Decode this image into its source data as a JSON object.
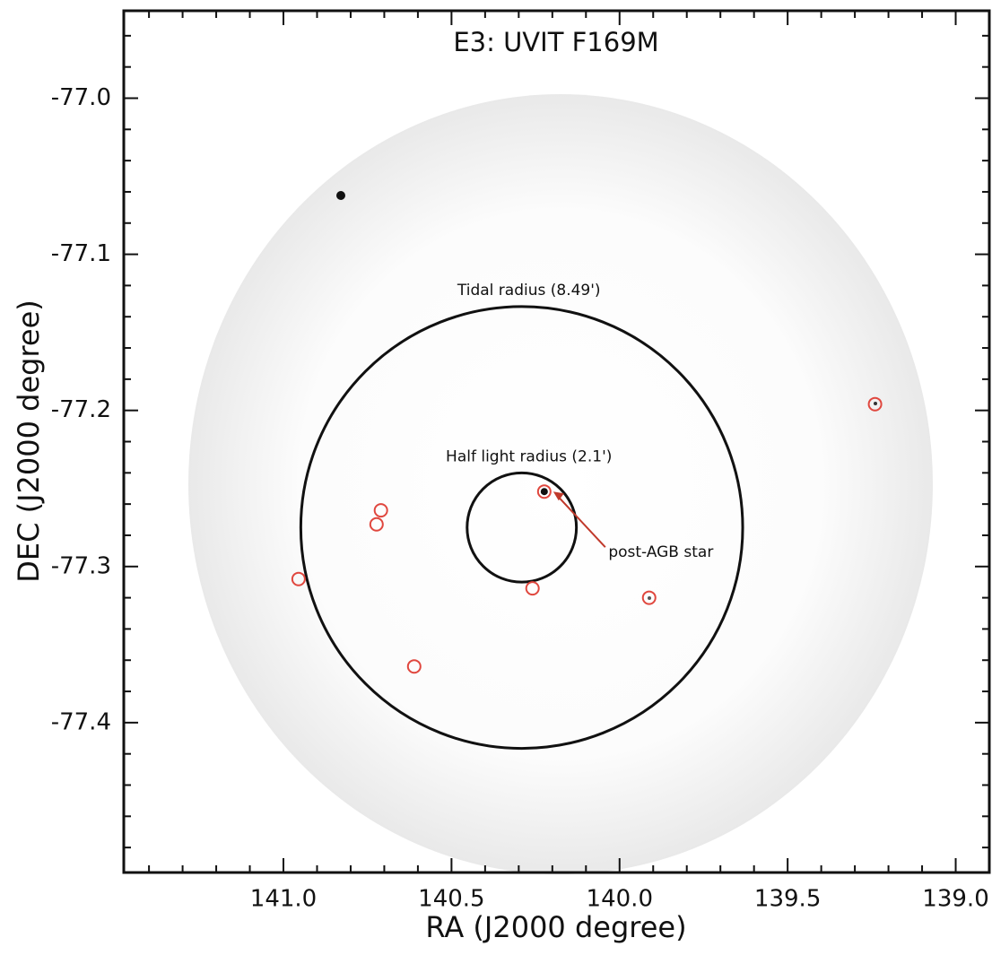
{
  "chart_data": {
    "type": "scatter",
    "title": "E3: UVIT F169M",
    "x_label": "RA (J2000  degree)",
    "y_label": "DEC (J2000  degree)",
    "xlim": [
      141.475,
      138.9
    ],
    "ylim": [
      -77.496,
      -76.944
    ],
    "xticks": [
      {
        "value": 141,
        "label": "141.0"
      },
      140.5,
      {
        "value": 140,
        "label": "140.0"
      },
      139.5,
      {
        "value": 139,
        "label": "139.0"
      }
    ],
    "yticks": [
      {
        "value": -77,
        "label": "-77.0"
      },
      -77.1,
      -77.2,
      -77.3,
      -77.4
    ],
    "xminorticks": [
      141.4,
      141.3,
      141.2,
      141.1,
      140.9,
      140.8,
      140.7,
      140.6,
      140.4,
      140.3,
      140.2,
      140.1,
      139.9,
      139.8,
      139.7,
      139.6,
      139.4,
      139.3,
      139.2,
      139.1
    ],
    "yminorticks": [
      -76.96,
      -76.98,
      -77.02,
      -77.04,
      -77.06,
      -77.08,
      -77.12,
      -77.14,
      -77.16,
      -77.18,
      -77.22,
      -77.24,
      -77.26,
      -77.28,
      -77.32,
      -77.34,
      -77.36,
      -77.38,
      -77.42,
      -77.44,
      -77.46,
      -77.48
    ],
    "cluster_center": {
      "x": 140.291,
      "y": -77.275
    },
    "radii": [
      {
        "label": "Tidal radius (8.49')",
        "arcmin": 8.49
      },
      {
        "label": "Half light radius (2.1')",
        "arcmin": 2.1
      }
    ],
    "series": [
      {
        "color": "#e0473e",
        "x": [
          139.24,
          140.224,
          140.71,
          140.723,
          140.955,
          140.259,
          139.912,
          140.611
        ],
        "values": [
          -77.196,
          -77.252,
          -77.264,
          -77.273,
          -77.308,
          -77.314,
          -77.32,
          -77.364
        ]
      }
    ],
    "annotation": {
      "text": "post-AGB star",
      "x": 140.224,
      "y": -77.252
    }
  }
}
